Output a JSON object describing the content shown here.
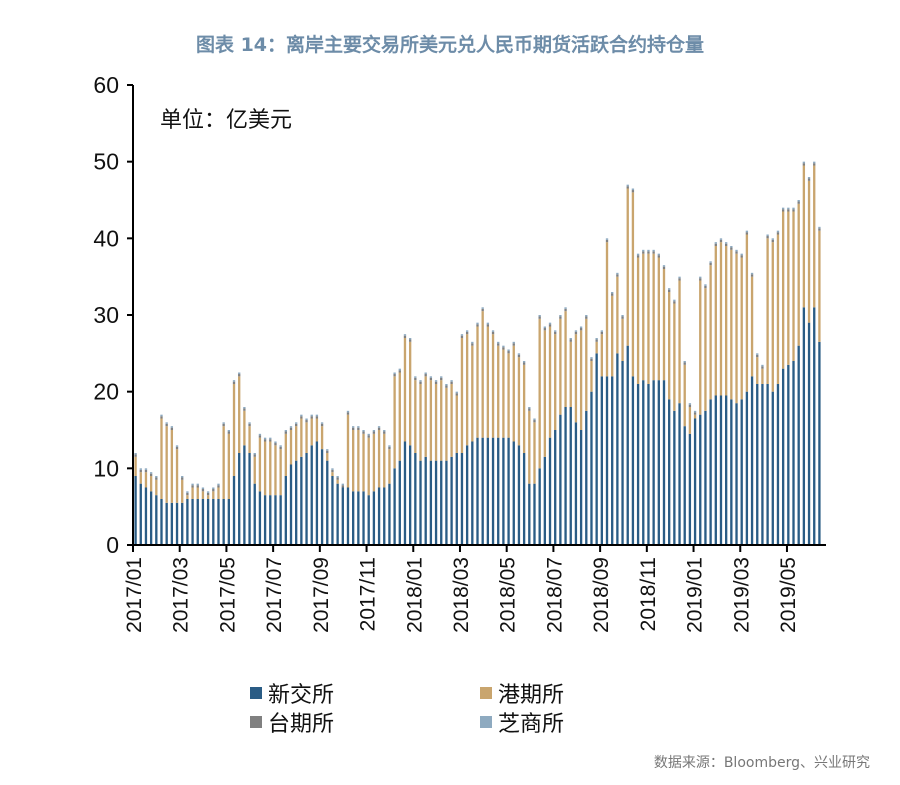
{
  "title": "图表 14：离岸主要交易所美元兑人民币期货活跃合约持仓量",
  "source": "数据来源：Bloomberg、兴业研究",
  "chart_data": {
    "type": "bar",
    "stacked": true,
    "unit_label": "单位：亿美元",
    "ylim": [
      0,
      60
    ],
    "yticks": [
      0,
      10,
      20,
      30,
      40,
      50,
      60
    ],
    "xtick_labels": [
      "2017/01",
      "2017/03",
      "2017/05",
      "2017/07",
      "2017/09",
      "2017/11",
      "2018/01",
      "2018/03",
      "2018/05",
      "2018/07",
      "2018/09",
      "2018/11",
      "2019/01",
      "2019/03",
      "2019/05"
    ],
    "grid": false,
    "legend_placement": "bottom",
    "series": [
      {
        "name": "新交所",
        "color": "#2a5c85",
        "values": [
          9,
          8,
          7.5,
          7,
          6.5,
          6,
          5.5,
          5.5,
          5.5,
          5.5,
          6,
          6,
          6,
          6,
          6,
          6,
          6,
          6,
          6,
          9,
          12,
          13,
          12,
          8,
          7,
          6.5,
          6.5,
          6.5,
          6.5,
          9,
          10.5,
          11,
          11.5,
          12,
          13,
          13.5,
          12.5,
          11,
          9,
          8,
          7.5,
          7.5,
          7,
          7,
          7,
          6.5,
          7,
          7.5,
          7.5,
          8,
          10,
          11,
          13.5,
          13,
          12,
          11,
          11.5,
          11,
          11,
          11,
          11,
          11.5,
          12,
          12,
          13,
          13.5,
          14,
          14,
          14,
          14,
          14,
          14,
          14,
          13.5,
          13,
          12,
          8,
          8,
          10,
          11.5,
          14,
          15,
          17,
          18,
          18,
          16,
          15,
          17.5,
          20,
          25,
          22,
          22,
          22,
          25,
          24,
          26,
          22,
          21,
          21.5,
          21,
          21.5,
          21.5,
          21.5,
          19,
          17.5,
          18.5,
          15.5,
          14.5,
          16.5,
          17,
          17.5,
          19,
          19.5,
          19.5,
          19.5,
          19,
          18.5,
          19,
          20,
          22,
          21,
          21,
          21,
          20,
          21,
          23,
          23.5,
          24,
          26,
          31,
          29,
          31,
          26.5
        ]
      },
      {
        "name": "港期所",
        "color": "#c9a56e",
        "values": [
          2.5,
          1.5,
          2,
          2,
          2,
          10.5,
          10,
          9.5,
          7,
          3,
          0.5,
          1.5,
          1.5,
          1,
          0.5,
          1,
          1.5,
          9.5,
          8.5,
          12,
          10,
          4.5,
          3.5,
          3.5,
          7,
          7,
          7,
          6.5,
          6,
          5.5,
          4.5,
          4.5,
          5,
          4,
          3.5,
          3,
          3,
          1,
          0.5,
          0.5,
          0,
          9.5,
          8,
          8,
          7.5,
          7.5,
          7.5,
          7.5,
          7,
          4.5,
          12,
          11.5,
          13.5,
          13.5,
          9.5,
          10,
          10.5,
          10.5,
          10,
          10.5,
          9.5,
          9.5,
          7.5,
          15,
          14.5,
          12.5,
          14.5,
          16.5,
          14.5,
          13.5,
          12,
          11.5,
          11,
          12.5,
          11.5,
          11.5,
          9.5,
          8,
          19.5,
          16.5,
          14.5,
          12.5,
          12.5,
          12.5,
          8.5,
          11.5,
          13,
          12,
          4,
          1.5,
          5.5,
          17.5,
          10.5,
          10,
          5.5,
          20.5,
          24,
          16.5,
          16.5,
          17,
          16.5,
          16,
          14.5,
          14,
          14,
          16,
          8,
          3.5,
          0.5,
          17.5,
          16,
          17.5,
          19.5,
          20,
          19.5,
          19.5,
          19.5,
          18.5,
          20.5,
          13,
          3.5,
          2,
          19,
          19.5,
          19.5,
          20.5,
          20,
          19.5,
          18.5,
          18.5,
          18.5,
          18.5,
          14.5
        ]
      },
      {
        "name": "台期所",
        "color": "#808080",
        "values_default": 0.3
      },
      {
        "name": "芝商所",
        "color": "#8eaac0",
        "values_default": 0.2
      }
    ]
  }
}
